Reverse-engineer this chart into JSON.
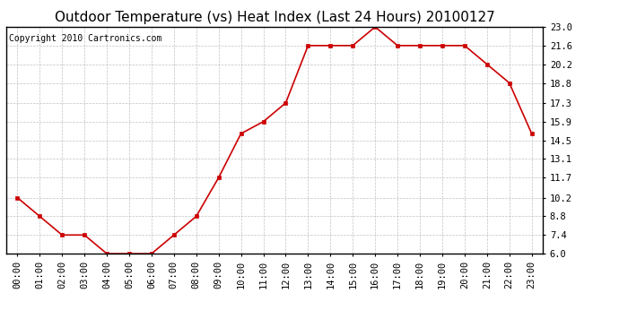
{
  "title": "Outdoor Temperature (vs) Heat Index (Last 24 Hours) 20100127",
  "copyright_text": "Copyright 2010 Cartronics.com",
  "x_labels": [
    "00:00",
    "01:00",
    "02:00",
    "03:00",
    "04:00",
    "05:00",
    "06:00",
    "07:00",
    "08:00",
    "09:00",
    "10:00",
    "11:00",
    "12:00",
    "13:00",
    "14:00",
    "15:00",
    "16:00",
    "17:00",
    "18:00",
    "19:00",
    "20:00",
    "21:00",
    "22:00",
    "23:00"
  ],
  "y_values": [
    10.2,
    8.8,
    7.4,
    7.4,
    6.0,
    6.0,
    6.0,
    7.4,
    8.8,
    11.7,
    15.0,
    15.9,
    17.3,
    21.6,
    21.6,
    21.6,
    23.0,
    21.6,
    21.6,
    21.6,
    21.6,
    20.2,
    18.8,
    15.0
  ],
  "y_ticks": [
    6.0,
    7.4,
    8.8,
    10.2,
    11.7,
    13.1,
    14.5,
    15.9,
    17.3,
    18.8,
    20.2,
    21.6,
    23.0
  ],
  "ylim": [
    6.0,
    23.0
  ],
  "line_color": "#cc0000",
  "marker_color": "#cc0000",
  "bg_color": "#ffffff",
  "grid_color": "#bbbbbb",
  "title_fontsize": 11,
  "copyright_fontsize": 7,
  "tick_fontsize": 7.5,
  "ytick_fontsize": 7.5
}
